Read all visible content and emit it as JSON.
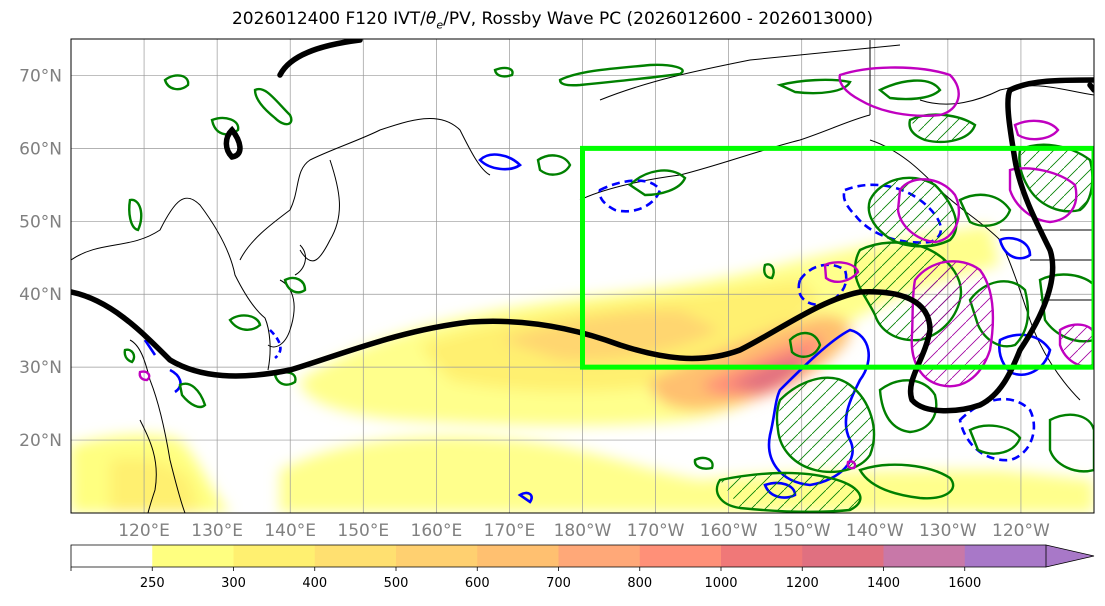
{
  "title": {
    "prefix": "2026012400 F120 IVT/",
    "theta": "θ",
    "sub": "e",
    "suffix": "/PV, Rossby Wave PC (2026012600 - 2026013000)"
  },
  "map": {
    "extent": {
      "lon_west": 110,
      "lon_east": 250,
      "lat_south": 10,
      "lat_north": 75
    },
    "lat_ticks": [
      {
        "value": 20,
        "label": "20°N"
      },
      {
        "value": 30,
        "label": "30°N"
      },
      {
        "value": 40,
        "label": "40°N"
      },
      {
        "value": 50,
        "label": "50°N"
      },
      {
        "value": 60,
        "label": "60°N"
      },
      {
        "value": 70,
        "label": "70°N"
      }
    ],
    "lon_ticks": [
      {
        "value": 120,
        "label": "120°E"
      },
      {
        "value": 130,
        "label": "130°E"
      },
      {
        "value": 140,
        "label": "140°E"
      },
      {
        "value": 150,
        "label": "150°E"
      },
      {
        "value": 160,
        "label": "160°E"
      },
      {
        "value": 170,
        "label": "170°E"
      },
      {
        "value": 180,
        "label": "180°W"
      },
      {
        "value": 190,
        "label": "170°W"
      },
      {
        "value": 200,
        "label": "160°W"
      },
      {
        "value": 210,
        "label": "150°W"
      },
      {
        "value": 220,
        "label": "140°W"
      },
      {
        "value": 230,
        "label": "130°W"
      },
      {
        "value": 240,
        "label": "120°W"
      }
    ],
    "grid": true,
    "highlight_box": {
      "lon_west": 180,
      "lon_east": 250,
      "lat_south": 30,
      "lat_north": 60,
      "color": "#00ff00"
    },
    "colors": {
      "pv_contour": "#000000",
      "theta_e_contour": "#008000",
      "rossby_positive": "#c000c0",
      "rossby_negative": "#0000ff"
    }
  },
  "colorbar": {
    "levels": [
      "250",
      "300",
      "400",
      "500",
      "600",
      "700",
      "800",
      "1000",
      "1200",
      "1400",
      "1600"
    ],
    "colors": [
      "#ffffff",
      "#ffff80",
      "#fff070",
      "#ffe070",
      "#ffd070",
      "#ffc070",
      "#ffa878",
      "#ff9078",
      "#f07878",
      "#e07080",
      "#c878a8",
      "#a878c8"
    ]
  }
}
